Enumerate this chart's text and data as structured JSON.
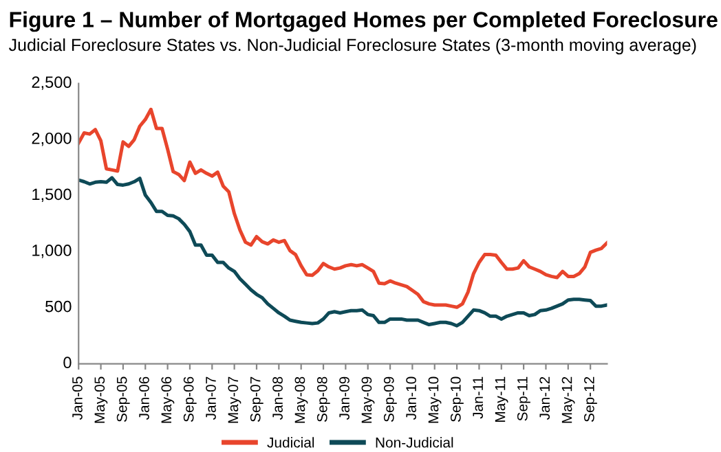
{
  "chart_data": {
    "type": "line",
    "title": "Figure 1 – Number of Mortgaged Homes per Completed Foreclosure",
    "subtitle": "Judicial Foreclosure States vs. Non-Judicial Foreclosure States (3-month moving average)",
    "categories": [
      "Jan-05",
      null,
      null,
      null,
      "May-05",
      null,
      null,
      null,
      "Sep-05",
      null,
      null,
      null,
      "Jan-06",
      null,
      null,
      null,
      "May-06",
      null,
      null,
      null,
      "Sep-06",
      null,
      null,
      null,
      "Jan-07",
      null,
      null,
      null,
      "May-07",
      null,
      null,
      null,
      "Sep-07",
      null,
      null,
      null,
      "Jan-08",
      null,
      null,
      null,
      "May-08",
      null,
      null,
      null,
      "Sep-08",
      null,
      null,
      null,
      "Jan-09",
      null,
      null,
      null,
      "May-09",
      null,
      null,
      null,
      "Sep-09",
      null,
      null,
      null,
      "Jan-10",
      null,
      null,
      null,
      "May-10",
      null,
      null,
      null,
      "Sep-10",
      null,
      null,
      null,
      "Jan-11",
      null,
      null,
      null,
      "May-11",
      null,
      null,
      null,
      "Sep-11",
      null,
      null,
      null,
      "Jan-12",
      null,
      null,
      null,
      "May-12",
      null,
      null,
      null,
      "Sep-12",
      null,
      null,
      null
    ],
    "series": [
      {
        "name": "Judicial",
        "color": "#e8452c",
        "values": [
          1970,
          2060,
          2050,
          2090,
          1990,
          1740,
          1730,
          1720,
          1980,
          1940,
          2000,
          2120,
          2180,
          2270,
          2100,
          2100,
          1915,
          1715,
          1690,
          1635,
          1800,
          1700,
          1730,
          1700,
          1675,
          1710,
          1585,
          1535,
          1340,
          1195,
          1085,
          1060,
          1135,
          1090,
          1070,
          1105,
          1085,
          1100,
          1010,
          975,
          875,
          795,
          790,
          830,
          895,
          865,
          845,
          855,
          875,
          885,
          875,
          885,
          855,
          825,
          720,
          715,
          740,
          720,
          705,
          690,
          655,
          620,
          555,
          535,
          525,
          525,
          525,
          515,
          505,
          535,
          640,
          805,
          905,
          975,
          975,
          970,
          905,
          845,
          845,
          855,
          920,
          865,
          845,
          825,
          795,
          780,
          770,
          825,
          780,
          780,
          805,
          865,
          995,
          1015,
          1030,
          1080
        ]
      },
      {
        "name": "Non-Judicial",
        "color": "#0e4a57",
        "values": [
          1640,
          1625,
          1605,
          1620,
          1625,
          1620,
          1660,
          1600,
          1595,
          1605,
          1625,
          1655,
          1505,
          1440,
          1360,
          1360,
          1325,
          1320,
          1295,
          1245,
          1180,
          1060,
          1060,
          970,
          970,
          905,
          905,
          855,
          825,
          760,
          710,
          660,
          620,
          590,
          535,
          495,
          455,
          425,
          390,
          380,
          370,
          365,
          360,
          365,
          400,
          455,
          465,
          455,
          465,
          475,
          475,
          480,
          440,
          430,
          370,
          370,
          400,
          400,
          400,
          390,
          390,
          390,
          370,
          350,
          360,
          370,
          370,
          360,
          340,
          370,
          425,
          480,
          475,
          455,
          425,
          425,
          400,
          425,
          440,
          455,
          455,
          430,
          440,
          475,
          480,
          495,
          515,
          535,
          570,
          575,
          575,
          570,
          565,
          515,
          515,
          525
        ]
      }
    ],
    "ylim": [
      0,
      2500
    ],
    "yticks": [
      0,
      500,
      {
        "value": 1000,
        "label": "1,000"
      },
      {
        "value": 1500,
        "label": "1,500"
      },
      {
        "value": 2000,
        "label": "2,000"
      },
      {
        "value": 2500,
        "label": "2,500"
      }
    ],
    "grid": false,
    "legend": "bottom",
    "marker": "none",
    "line_style": "solid"
  }
}
